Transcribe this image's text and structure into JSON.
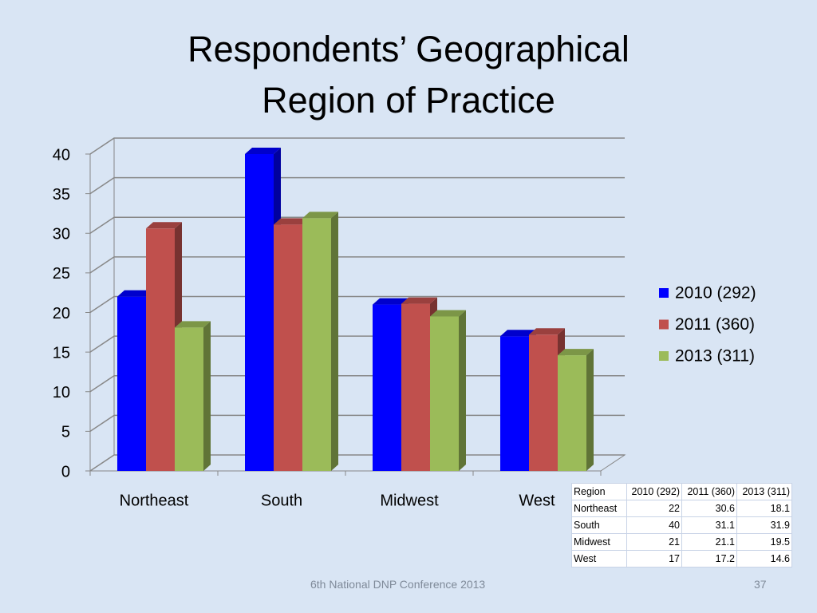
{
  "chart_data": {
    "type": "bar",
    "title": "Respondents’ Geographical Region of Practice",
    "categories": [
      "Northeast",
      "South",
      "Midwest",
      "West"
    ],
    "series": [
      {
        "name": "2010 (292)",
        "color": "#0000ff",
        "values": [
          22,
          40,
          21,
          17
        ]
      },
      {
        "name": "2011 (360)",
        "color": "#c0504d",
        "values": [
          30.6,
          31.1,
          21.1,
          17.2
        ]
      },
      {
        "name": "2013 (311)",
        "color": "#9bbb59",
        "values": [
          18.1,
          31.9,
          19.5,
          14.6
        ]
      }
    ],
    "ylim": [
      0,
      40
    ],
    "yticks": [
      0,
      5,
      10,
      15,
      20,
      25,
      30,
      35,
      40
    ],
    "grid": true,
    "legend": "right",
    "table_header": "Region"
  },
  "footer": "6th National DNP Conference  2013",
  "page_number": "37"
}
